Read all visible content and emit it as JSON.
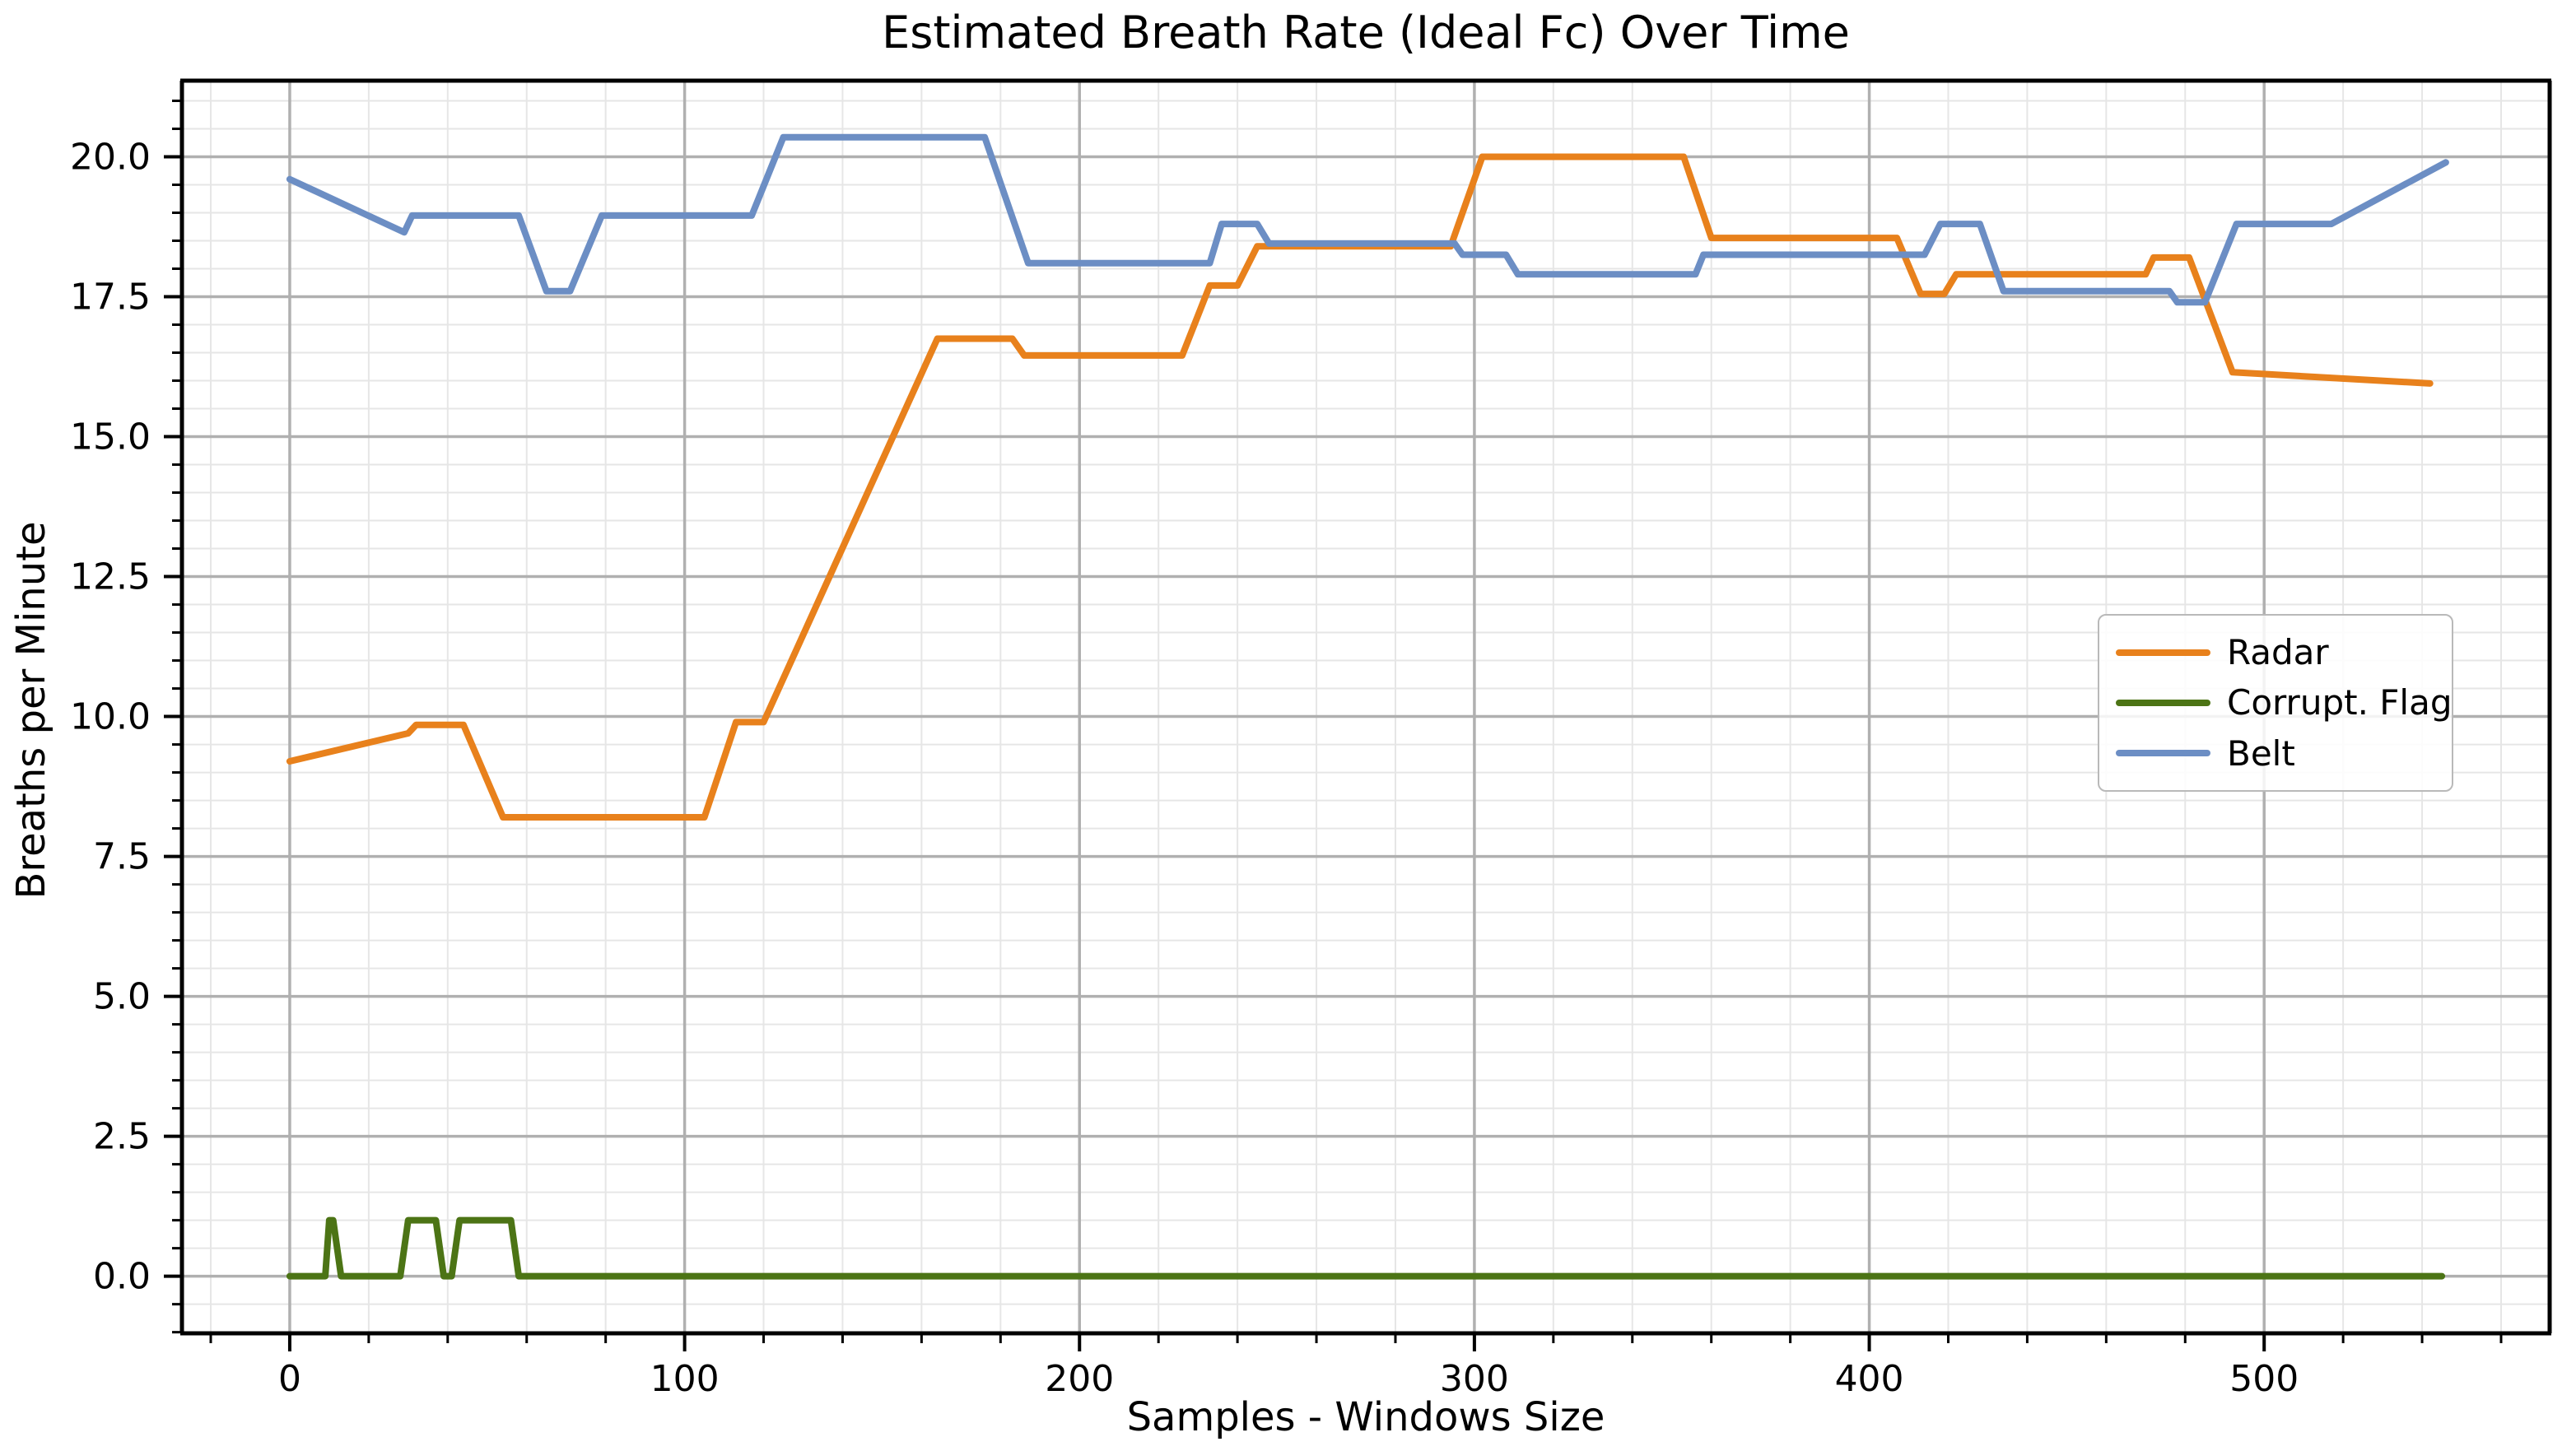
{
  "chart_data": {
    "type": "line",
    "title": "Estimated Breath Rate (Ideal Fc) Over Time",
    "xlabel": "Samples - Windows Size",
    "ylabel": "Breaths per Minute",
    "xlim": [
      -27.3,
      572.3
    ],
    "ylim": [
      -1.02,
      21.36
    ],
    "grid": true,
    "grid_major_color": "#b0b0b0",
    "grid_minor_color": "#e6e6e6",
    "legend_position": "center right",
    "x_ticks": [
      {
        "value": 0,
        "label": "0"
      },
      {
        "value": 100,
        "label": "100"
      },
      {
        "value": 200,
        "label": "200"
      },
      {
        "value": 300,
        "label": "300"
      },
      {
        "value": 400,
        "label": "400"
      },
      {
        "value": 500,
        "label": "500"
      }
    ],
    "x_minor_step": 20,
    "y_ticks": [
      {
        "value": 0,
        "label": "0.0"
      },
      {
        "value": 2.5,
        "label": "2.5"
      },
      {
        "value": 5,
        "label": "5.0"
      },
      {
        "value": 7.5,
        "label": "7.5"
      },
      {
        "value": 10,
        "label": "10.0"
      },
      {
        "value": 12.5,
        "label": "12.5"
      },
      {
        "value": 15,
        "label": "15.0"
      },
      {
        "value": 17.5,
        "label": "17.5"
      },
      {
        "value": 20,
        "label": "20.0"
      }
    ],
    "y_minor_step": 0.5,
    "series": [
      {
        "name": "Radar",
        "color": "#E8811C",
        "points": [
          [
            0,
            9.2
          ],
          [
            30,
            9.7
          ],
          [
            32,
            9.85
          ],
          [
            44,
            9.85
          ],
          [
            54,
            8.2
          ],
          [
            105,
            8.2
          ],
          [
            113,
            9.9
          ],
          [
            120,
            9.9
          ],
          [
            164,
            16.75
          ],
          [
            183,
            16.75
          ],
          [
            186,
            16.45
          ],
          [
            226,
            16.45
          ],
          [
            233,
            17.7
          ],
          [
            240,
            17.7
          ],
          [
            245,
            18.4
          ],
          [
            294,
            18.4
          ],
          [
            302,
            20.0
          ],
          [
            353,
            20.0
          ],
          [
            360,
            18.55
          ],
          [
            407,
            18.55
          ],
          [
            413,
            17.55
          ],
          [
            419,
            17.55
          ],
          [
            422,
            17.9
          ],
          [
            470,
            17.9
          ],
          [
            472,
            18.2
          ],
          [
            481,
            18.2
          ],
          [
            492,
            16.15
          ],
          [
            542,
            15.95
          ]
        ]
      },
      {
        "name": "Corrupt. Flag",
        "color": "#4C7415",
        "points": [
          [
            0,
            0
          ],
          [
            9,
            0
          ],
          [
            10,
            1
          ],
          [
            11,
            1
          ],
          [
            13,
            0
          ],
          [
            28,
            0
          ],
          [
            30,
            1
          ],
          [
            37,
            1
          ],
          [
            39,
            0
          ],
          [
            41,
            0
          ],
          [
            43,
            1
          ],
          [
            56,
            1
          ],
          [
            58,
            0
          ],
          [
            545,
            0
          ]
        ]
      },
      {
        "name": "Belt",
        "color": "#6C8EC4",
        "points": [
          [
            0,
            19.6
          ],
          [
            29,
            18.65
          ],
          [
            31,
            18.95
          ],
          [
            58,
            18.95
          ],
          [
            65,
            17.6
          ],
          [
            71,
            17.6
          ],
          [
            79,
            18.95
          ],
          [
            117,
            18.95
          ],
          [
            125,
            20.35
          ],
          [
            176,
            20.35
          ],
          [
            187,
            18.1
          ],
          [
            233,
            18.1
          ],
          [
            236,
            18.8
          ],
          [
            245,
            18.8
          ],
          [
            248,
            18.45
          ],
          [
            295,
            18.45
          ],
          [
            297,
            18.25
          ],
          [
            308,
            18.25
          ],
          [
            311,
            17.9
          ],
          [
            356,
            17.9
          ],
          [
            358,
            18.25
          ],
          [
            414,
            18.25
          ],
          [
            418,
            18.8
          ],
          [
            428,
            18.8
          ],
          [
            434,
            17.6
          ],
          [
            476,
            17.6
          ],
          [
            478,
            17.4
          ],
          [
            485,
            17.4
          ],
          [
            493,
            18.8
          ],
          [
            517,
            18.8
          ],
          [
            546,
            19.9
          ]
        ]
      }
    ]
  }
}
